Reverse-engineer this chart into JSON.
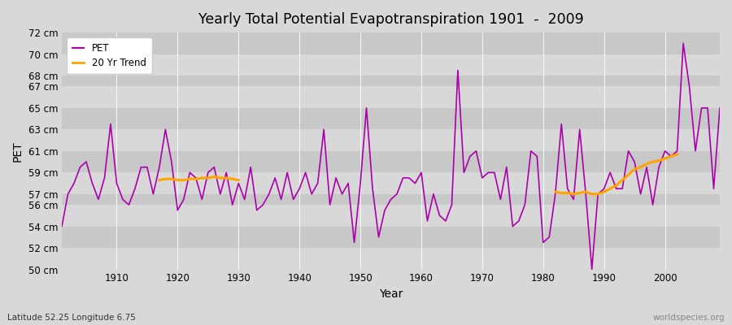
{
  "title": "Yearly Total Potential Evapotranspiration 1901  -  2009",
  "xlabel": "Year",
  "ylabel": "PET",
  "subtitle": "Latitude 52.25 Longitude 6.75",
  "watermark": "worldspecies.org",
  "pet_color": "#AA00AA",
  "trend_color": "#FFA500",
  "bg_color": "#d8d8d8",
  "years": [
    1901,
    1902,
    1903,
    1904,
    1905,
    1906,
    1907,
    1908,
    1909,
    1910,
    1911,
    1912,
    1913,
    1914,
    1915,
    1916,
    1917,
    1918,
    1919,
    1920,
    1921,
    1922,
    1923,
    1924,
    1925,
    1926,
    1927,
    1928,
    1929,
    1930,
    1931,
    1932,
    1933,
    1934,
    1935,
    1936,
    1937,
    1938,
    1939,
    1940,
    1941,
    1942,
    1943,
    1944,
    1945,
    1946,
    1947,
    1948,
    1949,
    1950,
    1951,
    1952,
    1953,
    1954,
    1955,
    1956,
    1957,
    1958,
    1959,
    1960,
    1961,
    1962,
    1963,
    1964,
    1965,
    1966,
    1967,
    1968,
    1969,
    1970,
    1971,
    1972,
    1973,
    1974,
    1975,
    1976,
    1977,
    1978,
    1979,
    1980,
    1981,
    1982,
    1983,
    1984,
    1985,
    1986,
    1987,
    1988,
    1989,
    1990,
    1991,
    1992,
    1993,
    1994,
    1995,
    1996,
    1997,
    1998,
    1999,
    2000,
    2001,
    2002,
    2003,
    2004,
    2005,
    2006,
    2007,
    2008,
    2009
  ],
  "pet_values": [
    54.0,
    57.0,
    58.0,
    59.5,
    60.0,
    58.0,
    56.5,
    58.5,
    63.5,
    58.0,
    56.5,
    56.0,
    57.5,
    59.5,
    59.5,
    57.0,
    59.5,
    63.0,
    60.0,
    55.5,
    56.5,
    59.0,
    58.5,
    56.5,
    59.0,
    59.5,
    57.0,
    59.0,
    56.0,
    58.0,
    56.5,
    59.5,
    55.5,
    56.0,
    57.0,
    58.5,
    56.5,
    59.0,
    56.5,
    57.5,
    59.0,
    57.0,
    58.0,
    63.0,
    56.0,
    58.5,
    57.0,
    58.0,
    52.5,
    58.0,
    65.0,
    57.5,
    53.0,
    55.5,
    56.5,
    57.0,
    58.5,
    58.5,
    58.0,
    59.0,
    54.5,
    57.0,
    55.0,
    54.5,
    56.0,
    68.5,
    59.0,
    60.5,
    61.0,
    58.5,
    59.0,
    59.0,
    56.5,
    59.5,
    54.0,
    54.5,
    56.0,
    61.0,
    60.5,
    52.5,
    53.0,
    57.0,
    63.5,
    57.5,
    56.5,
    63.0,
    57.0,
    50.0,
    57.0,
    57.5,
    59.0,
    57.5,
    57.5,
    61.0,
    60.0,
    57.0,
    59.5,
    56.0,
    59.5,
    61.0,
    60.5,
    61.0,
    71.0,
    67.0,
    61.0,
    65.0,
    65.0,
    57.5,
    65.0
  ],
  "trend_seg1_years": [
    1917,
    1918,
    1919,
    1920,
    1921,
    1922,
    1923,
    1924,
    1925,
    1926,
    1927,
    1928,
    1929,
    1930
  ],
  "trend_seg1_vals": [
    58.3,
    58.4,
    58.4,
    58.3,
    58.3,
    58.4,
    58.4,
    58.5,
    58.5,
    58.6,
    58.5,
    58.5,
    58.4,
    58.3
  ],
  "trend_seg2_years": [
    1982,
    1983,
    1984,
    1985,
    1986,
    1987,
    1988,
    1989,
    1990,
    1991,
    1992,
    1993,
    1994,
    1995,
    1996,
    1997,
    1998,
    1999,
    2000,
    2001,
    2002
  ],
  "trend_seg2_vals": [
    57.2,
    57.1,
    57.1,
    57.0,
    57.1,
    57.2,
    57.0,
    57.0,
    57.2,
    57.5,
    57.8,
    58.3,
    58.8,
    59.3,
    59.5,
    59.8,
    60.0,
    60.1,
    60.3,
    60.5,
    60.7
  ],
  "yticks": [
    50,
    52,
    54,
    56,
    57,
    59,
    61,
    63,
    65,
    67,
    68,
    70,
    72
  ],
  "ytick_labels": [
    "50 cm",
    "52 cm",
    "54 cm",
    "56 cm",
    "57 cm",
    "59 cm",
    "61 cm",
    "63 cm",
    "65 cm",
    "67 cm",
    "68 cm",
    "70 cm",
    "72 cm"
  ],
  "xticks": [
    1910,
    1920,
    1930,
    1940,
    1950,
    1960,
    1970,
    1980,
    1990,
    2000
  ],
  "xlim": [
    1901,
    2009
  ],
  "ylim": [
    50,
    72
  ],
  "band_colors": [
    "#d4d4d4",
    "#cccccc"
  ]
}
